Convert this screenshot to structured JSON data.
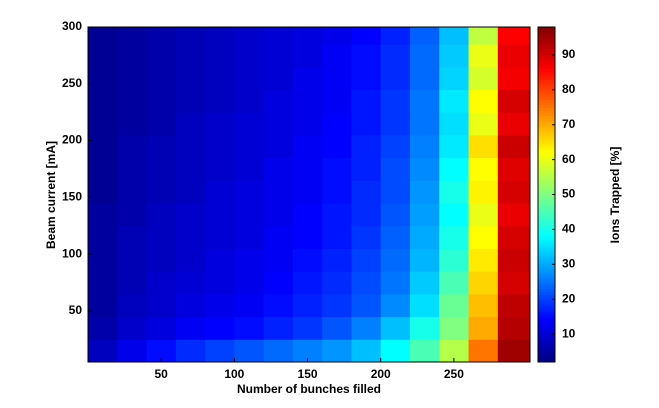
{
  "chart_data": {
    "type": "heatmap",
    "x_label": "Number of bunches filled",
    "y_label": "Beam current [mA]",
    "colorbar_label": "Ions Trapped [%]",
    "colormap": "jet",
    "xbins": [
      0,
      20,
      40,
      60,
      80,
      100,
      120,
      140,
      160,
      180,
      200,
      220,
      240,
      260,
      280,
      302
    ],
    "ybins": [
      5,
      25,
      45,
      65,
      85,
      105,
      125,
      145,
      165,
      185,
      205,
      225,
      245,
      265,
      285,
      300
    ],
    "values": [
      [
        8,
        12,
        15,
        18,
        20,
        22,
        24,
        26,
        28,
        32,
        38,
        45,
        55,
        75,
        95
      ],
      [
        6,
        9,
        11,
        13,
        14,
        15,
        17,
        19,
        22,
        26,
        32,
        40,
        50,
        70,
        93
      ],
      [
        5,
        8,
        9,
        11,
        12,
        13,
        15,
        17,
        19,
        22,
        27,
        35,
        48,
        68,
        92
      ],
      [
        5,
        7,
        9,
        10,
        11,
        12,
        14,
        16,
        18,
        21,
        25,
        33,
        45,
        66,
        90
      ],
      [
        5,
        7,
        8,
        9,
        11,
        12,
        13,
        15,
        17,
        20,
        24,
        31,
        42,
        64,
        91
      ],
      [
        5,
        7,
        8,
        9,
        10,
        11,
        13,
        14,
        16,
        19,
        23,
        30,
        40,
        62,
        90
      ],
      [
        5,
        6,
        8,
        9,
        10,
        11,
        12,
        14,
        16,
        18,
        22,
        29,
        38,
        60,
        88
      ],
      [
        4,
        6,
        7,
        8,
        10,
        11,
        12,
        13,
        15,
        18,
        21,
        28,
        40,
        63,
        90
      ],
      [
        4,
        6,
        7,
        8,
        9,
        10,
        12,
        13,
        15,
        17,
        21,
        27,
        38,
        62,
        89
      ],
      [
        4,
        6,
        7,
        8,
        9,
        10,
        11,
        13,
        14,
        17,
        20,
        26,
        36,
        65,
        91
      ],
      [
        4,
        5,
        6,
        8,
        9,
        10,
        11,
        12,
        14,
        16,
        19,
        25,
        35,
        60,
        88
      ],
      [
        4,
        5,
        6,
        7,
        8,
        9,
        11,
        12,
        13,
        16,
        19,
        25,
        36,
        62,
        90
      ],
      [
        4,
        5,
        6,
        7,
        8,
        9,
        10,
        12,
        13,
        15,
        18,
        24,
        34,
        58,
        87
      ],
      [
        4,
        5,
        6,
        7,
        8,
        9,
        10,
        11,
        13,
        15,
        18,
        24,
        33,
        60,
        88
      ],
      [
        4,
        5,
        6,
        7,
        8,
        9,
        10,
        11,
        12,
        14,
        17,
        23,
        32,
        56,
        86
      ]
    ],
    "xlim": [
      0,
      302
    ],
    "ylim": [
      5,
      300
    ],
    "clim": [
      2,
      98
    ],
    "xticks": [
      50,
      100,
      150,
      200,
      250
    ],
    "yticks": [
      50,
      100,
      150,
      200,
      250,
      300
    ],
    "cticks": [
      10,
      20,
      30,
      40,
      50,
      60,
      70,
      80,
      90
    ]
  }
}
